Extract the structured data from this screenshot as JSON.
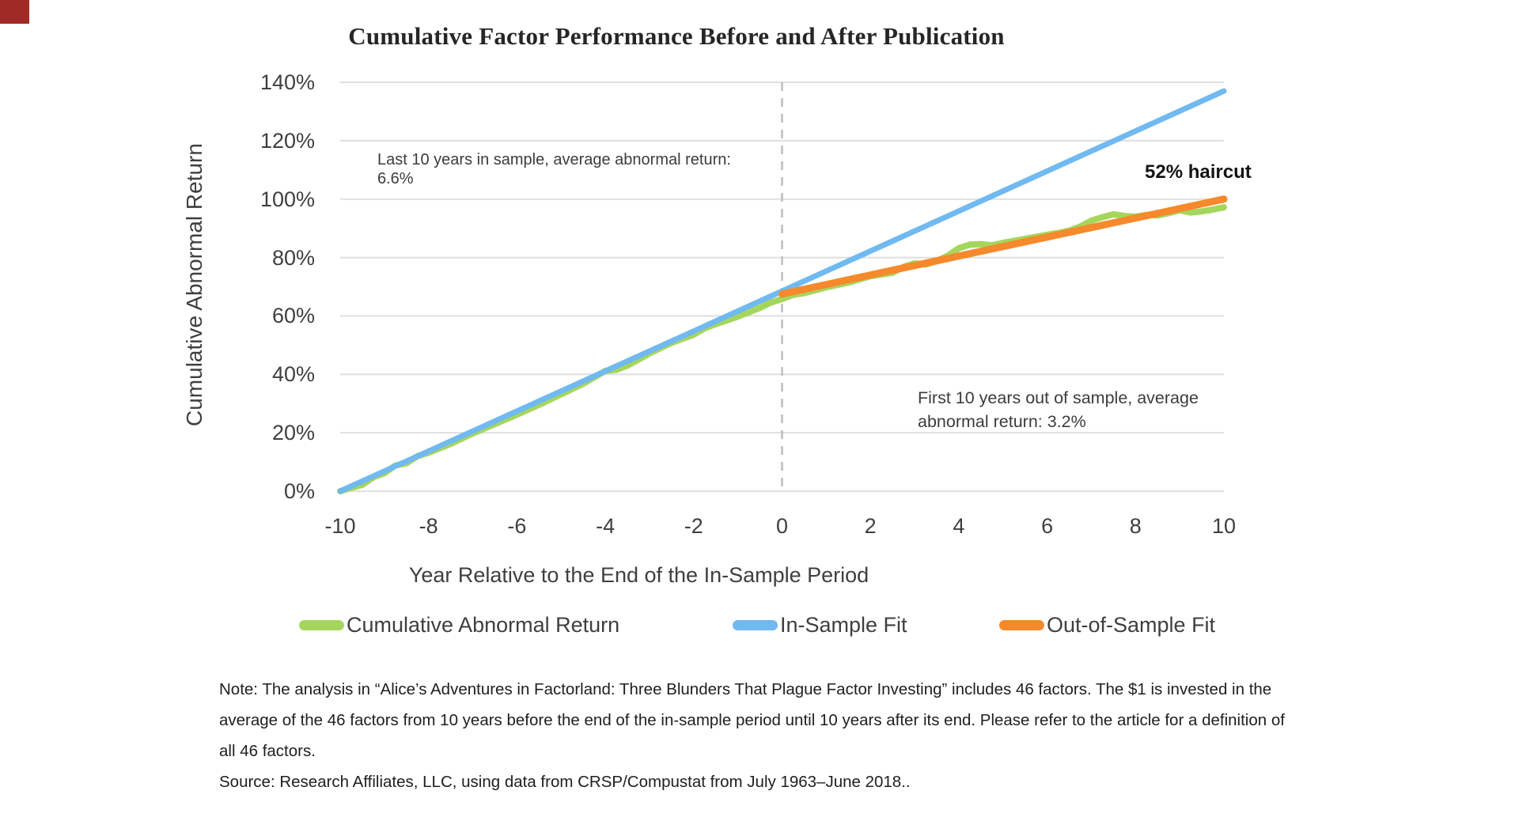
{
  "corner_mark": {
    "color": "#9e2b25"
  },
  "chart": {
    "title": "Cumulative Factor Performance Before and After Publication",
    "y_axis_title": "Cumulative Abnormal Return",
    "x_axis_title": "Year Relative to the End of the In-Sample Period"
  },
  "annotations": {
    "in_sample_line1": "Last 10 years in sample, average abnormal return:",
    "in_sample_line2": "6.6%",
    "out_sample": "First 10 years out of sample, average abnormal return: 3.2%",
    "haircut": "52% haircut"
  },
  "legend": {
    "items": [
      {
        "label": "Cumulative Abnormal Return",
        "color": "#a5d65c"
      },
      {
        "label": "In-Sample Fit",
        "color": "#70b9f1"
      },
      {
        "label": "Out-of-Sample Fit",
        "color": "#f6892b"
      }
    ]
  },
  "notes": {
    "lines": [
      "Note: The analysis in “Alice’s Adventures in Factorland: Three Blunders That Plague Factor Investing” includes 46 factors. The $1 is invested in the",
      "average of the 46 factors from 10 years before the end of the in-sample period until 10 years after its end. Please refer to the article for a definition of",
      "all 46 factors."
    ],
    "source": "Source: Research Affiliates, LLC, using data from CRSP/Compustat from July 1963–June 2018.."
  },
  "chart_data": {
    "type": "line",
    "title": "Cumulative Factor Performance Before and After Publication",
    "xlabel": "Year Relative to the End of the In-Sample Period",
    "ylabel": "Cumulative Abnormal Return",
    "xlim": [
      -10,
      10
    ],
    "ylim": [
      0,
      140
    ],
    "x_ticks": [
      -10,
      -8,
      -6,
      -4,
      -2,
      0,
      2,
      4,
      6,
      8,
      10
    ],
    "y_ticks": [
      0,
      20,
      40,
      60,
      80,
      100,
      120,
      140
    ],
    "y_tick_format": "percent",
    "grid": "horizontal",
    "grid_color": "#dfdfdf",
    "vline": {
      "x": 0,
      "style": "dashed",
      "color": "#bdbdbd"
    },
    "legend_position": "bottom",
    "annotations": [
      {
        "x": -9.2,
        "y": 118,
        "text": "Last 10 years in sample, average abnormal return: 6.6%"
      },
      {
        "x": 3.1,
        "y": 34,
        "text": "First 10 years out of sample, average abnormal return: 3.2%"
      },
      {
        "x": 8.2,
        "y": 108,
        "text": "52% haircut"
      }
    ],
    "series": [
      {
        "name": "Cumulative Abnormal Return",
        "color": "#a5d65c",
        "stroke_width": 8,
        "points": [
          [
            -10,
            0
          ],
          [
            -9.75,
            1.2
          ],
          [
            -9.5,
            2.2
          ],
          [
            -9.25,
            4.8
          ],
          [
            -9,
            6.2
          ],
          [
            -8.75,
            8.8
          ],
          [
            -8.5,
            9.6
          ],
          [
            -8.25,
            12.0
          ],
          [
            -8,
            13.2
          ],
          [
            -7.5,
            16.2
          ],
          [
            -7,
            19.8
          ],
          [
            -6.5,
            23.0
          ],
          [
            -6,
            26.2
          ],
          [
            -5.5,
            29.6
          ],
          [
            -5,
            33.2
          ],
          [
            -4.5,
            36.8
          ],
          [
            -4,
            41.2
          ],
          [
            -3.75,
            41.6
          ],
          [
            -3.5,
            43.0
          ],
          [
            -3,
            47.2
          ],
          [
            -2.5,
            50.8
          ],
          [
            -2,
            53.6
          ],
          [
            -1.75,
            55.8
          ],
          [
            -1.5,
            57.2
          ],
          [
            -1,
            59.8
          ],
          [
            -0.5,
            62.8
          ],
          [
            -0.25,
            64.6
          ],
          [
            0,
            65.8
          ],
          [
            0.25,
            67.2
          ],
          [
            0.5,
            67.8
          ],
          [
            1,
            69.8
          ],
          [
            1.5,
            71.4
          ],
          [
            2,
            73.6
          ],
          [
            2.25,
            74.2
          ],
          [
            2.5,
            74.8
          ],
          [
            2.75,
            76.8
          ],
          [
            3,
            78.0
          ],
          [
            3.25,
            77.6
          ],
          [
            3.5,
            78.8
          ],
          [
            3.75,
            80.6
          ],
          [
            4,
            83.2
          ],
          [
            4.25,
            84.4
          ],
          [
            4.5,
            84.6
          ],
          [
            4.75,
            84.2
          ],
          [
            5,
            85.0
          ],
          [
            5.5,
            86.4
          ],
          [
            6,
            87.8
          ],
          [
            6.25,
            88.4
          ],
          [
            6.5,
            89.2
          ],
          [
            6.75,
            90.6
          ],
          [
            7,
            92.6
          ],
          [
            7.25,
            93.8
          ],
          [
            7.5,
            94.8
          ],
          [
            7.75,
            94.2
          ],
          [
            8,
            94.0
          ],
          [
            8.25,
            94.6
          ],
          [
            8.5,
            94.4
          ],
          [
            8.75,
            95.2
          ],
          [
            9,
            96.2
          ],
          [
            9.25,
            95.4
          ],
          [
            9.5,
            95.8
          ],
          [
            9.75,
            96.4
          ],
          [
            10,
            97.2
          ]
        ]
      },
      {
        "name": "In-Sample Fit",
        "color": "#70b9f1",
        "stroke_width": 7,
        "points": [
          [
            -10,
            0
          ],
          [
            10,
            137
          ]
        ]
      },
      {
        "name": "Out-of-Sample Fit",
        "color": "#f6892b",
        "stroke_width": 9,
        "points": [
          [
            0,
            67.5
          ],
          [
            10,
            100
          ]
        ]
      }
    ]
  }
}
